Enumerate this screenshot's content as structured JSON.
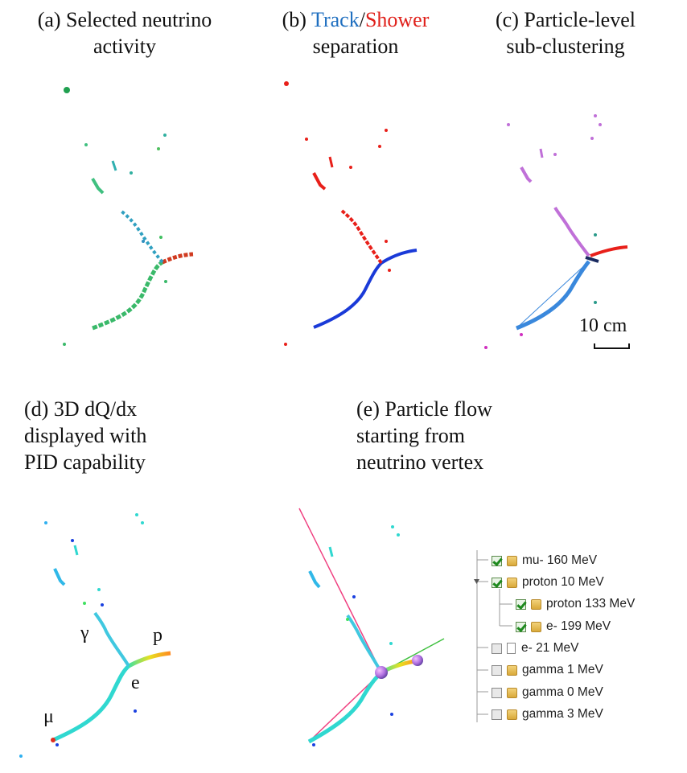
{
  "panels": {
    "a": {
      "title_line1": "(a) Selected neutrino",
      "title_line2": "activity"
    },
    "b": {
      "title_prefix": "(b) ",
      "title_track": "Track",
      "title_slash": "/",
      "title_shower": "Shower",
      "title_line2": "separation"
    },
    "c": {
      "title_line1": "(c) Particle-level",
      "title_line2": "sub-clustering"
    },
    "d": {
      "title_line1": "(d) 3D dQ/dx",
      "title_line2": "displayed with",
      "title_line3": "PID capability"
    },
    "e": {
      "title_line1": "(e) Particle flow",
      "title_line2": "starting from",
      "title_line3": "neutrino vertex"
    }
  },
  "scale_bar": {
    "label": "10 cm"
  },
  "particle_labels": {
    "gamma": "γ",
    "proton": "p",
    "electron": "e",
    "muon": "μ"
  },
  "colors": {
    "track": "#1f6fc0",
    "shower": "#e0201a",
    "cluster_violet": "#c070d8",
    "vertex": "#9a6fd0"
  },
  "particle_tree": [
    {
      "label": "mu- 160 MeV",
      "checked": true,
      "icon": "folder-icon",
      "depth": 0
    },
    {
      "label": "proton 10 MeV",
      "checked": true,
      "icon": "folder-icon",
      "depth": 0
    },
    {
      "label": "proton 133 MeV",
      "checked": true,
      "icon": "folder-icon",
      "depth": 1
    },
    {
      "label": "e- 199 MeV",
      "checked": true,
      "icon": "folder-icon",
      "depth": 1
    },
    {
      "label": "e- 21 MeV",
      "checked": false,
      "icon": "document-icon",
      "depth": 0
    },
    {
      "label": "gamma 1 MeV",
      "checked": false,
      "icon": "folder-icon",
      "depth": 0
    },
    {
      "label": "gamma 0 MeV",
      "checked": false,
      "icon": "folder-icon",
      "depth": 0
    },
    {
      "label": "gamma 3 MeV",
      "checked": false,
      "icon": "folder-icon",
      "depth": 0
    }
  ]
}
